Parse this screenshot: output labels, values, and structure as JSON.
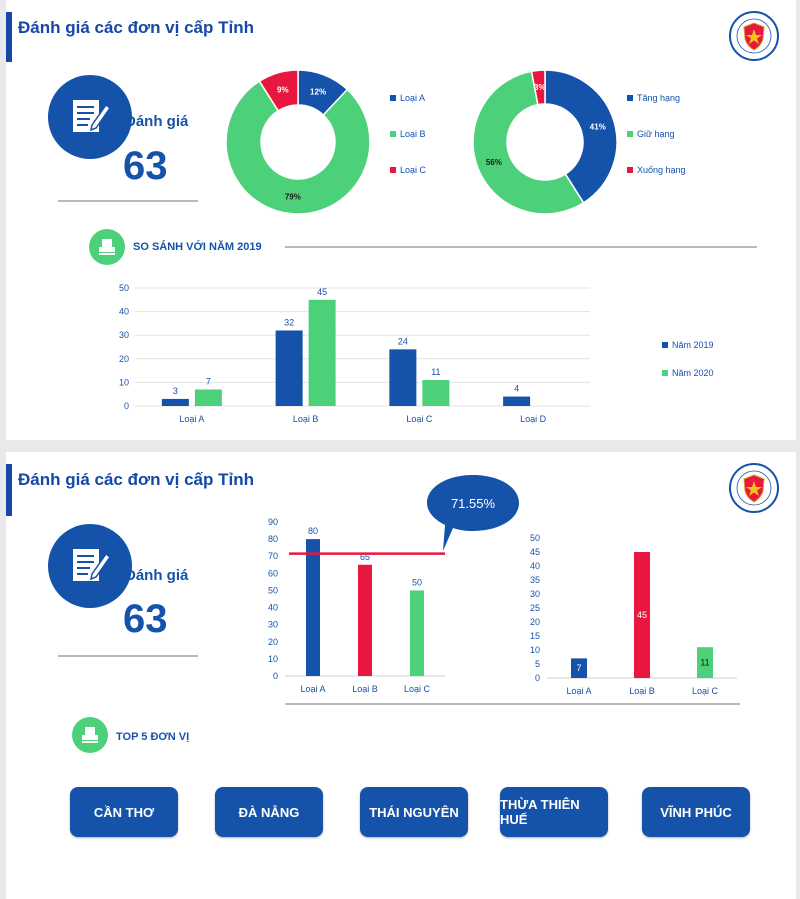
{
  "slide1": {
    "title": "Đánh giá các đơn vị cấp Tỉnh",
    "kpi_label": "Đánh giá",
    "kpi_value": "63",
    "compare_label": "SO SÁNH VỚI NĂM 2019"
  },
  "slide2": {
    "title": "Đánh giá các đơn vị cấp Tỉnh",
    "kpi_label": "Đánh giá",
    "kpi_value": "63",
    "top_label": "TOP 5 ĐƠN VỊ",
    "callout": "71.55%",
    "cities": [
      "CẦN THƠ",
      "ĐÀ NẴNG",
      "THÁI NGUYÊN",
      "THỪA THIÊN HUẾ",
      "VĨNH PHÚC"
    ]
  },
  "colors": {
    "blue": "#1552aa",
    "green": "#4cd17a",
    "red": "#e8173f"
  },
  "icons": [
    "shield-emblem-logo",
    "document-pen-icon",
    "stamp-icon"
  ],
  "chart_data": [
    {
      "type": "pie",
      "variant": "donut",
      "categories": [
        "Loại A",
        "Loại B",
        "Loại C"
      ],
      "values": [
        12,
        79,
        9
      ],
      "labels": [
        "12%",
        "79%",
        "9%"
      ],
      "colors": [
        "#1552aa",
        "#4cd17a",
        "#e8173f"
      ],
      "legend": "right"
    },
    {
      "type": "pie",
      "variant": "donut",
      "categories": [
        "Tăng hạng",
        "Giữ hạng",
        "Xuống hạng"
      ],
      "values": [
        41,
        56,
        3
      ],
      "labels": [
        "41%",
        "56%",
        "3%"
      ],
      "colors": [
        "#1552aa",
        "#4cd17a",
        "#e8173f"
      ],
      "legend": "right"
    },
    {
      "type": "bar",
      "categories": [
        "Loại A",
        "Loại B",
        "Loại C",
        "Loại D"
      ],
      "series": [
        {
          "name": "Năm 2019",
          "values": [
            3,
            32,
            24,
            4
          ],
          "color": "#1552aa"
        },
        {
          "name": "Năm 2020",
          "values": [
            7,
            45,
            11,
            null
          ],
          "color": "#4cd17a"
        }
      ],
      "ylim": [
        0,
        50
      ],
      "yticks": [
        0,
        10,
        20,
        30,
        40,
        50
      ],
      "grid": true,
      "legend": "right"
    },
    {
      "type": "bar",
      "categories": [
        "Loại A",
        "Loại B",
        "Loại C"
      ],
      "values": [
        80,
        65,
        50
      ],
      "colors": [
        "#1552aa",
        "#e8173f",
        "#4cd17a"
      ],
      "ylim": [
        0,
        90
      ],
      "yticks": [
        0,
        10,
        20,
        30,
        40,
        50,
        60,
        70,
        80,
        90
      ],
      "reference_line": 71.55
    },
    {
      "type": "bar",
      "categories": [
        "Loại A",
        "Loại B",
        "Loại C"
      ],
      "values": [
        7,
        45,
        11
      ],
      "colors": [
        "#1552aa",
        "#e8173f",
        "#4cd17a"
      ],
      "ylim": [
        0,
        50
      ],
      "yticks": [
        0,
        5,
        10,
        15,
        20,
        25,
        30,
        35,
        40,
        45,
        50
      ]
    }
  ]
}
